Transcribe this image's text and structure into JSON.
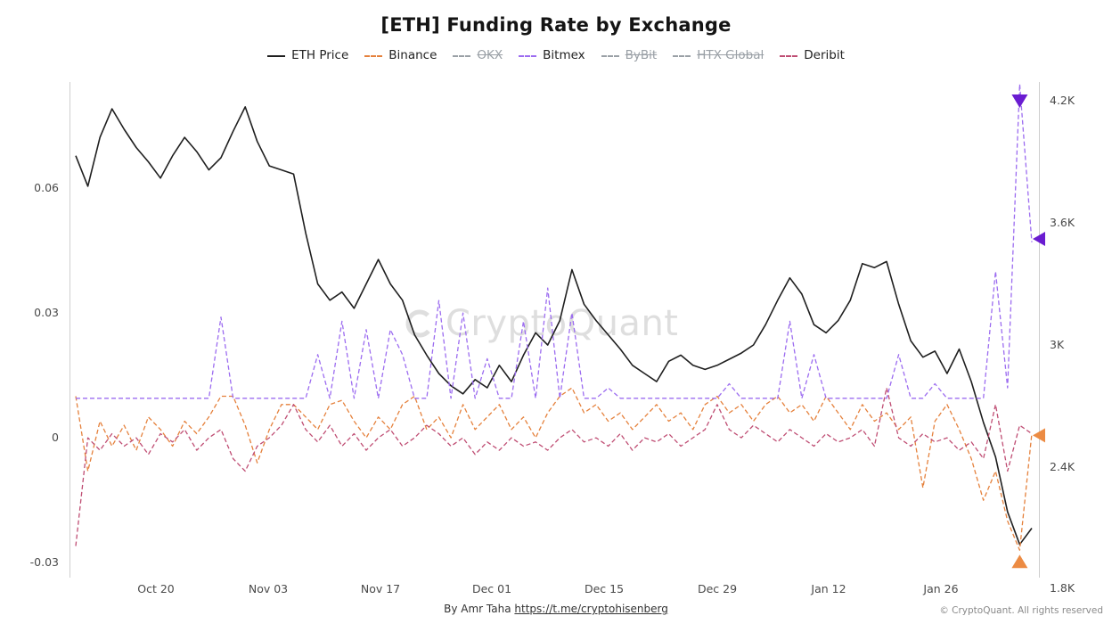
{
  "header": {
    "title": "[ETH] Funding Rate by Exchange"
  },
  "legend": {
    "items": [
      {
        "label": "ETH Price",
        "color": "#1f1f1f",
        "style": "solid",
        "active": true
      },
      {
        "label": "Binance",
        "color": "#e5813c",
        "style": "dashed",
        "active": true
      },
      {
        "label": "OKX",
        "color": "#9aa0a6",
        "style": "dashed",
        "active": false
      },
      {
        "label": "Bitmex",
        "color": "#9c6cf0",
        "style": "dashed",
        "active": true
      },
      {
        "label": "ByBit",
        "color": "#9aa0a6",
        "style": "dashed",
        "active": false
      },
      {
        "label": "HTX Global",
        "color": "#9aa0a6",
        "style": "dashed",
        "active": false
      },
      {
        "label": "Deribit",
        "color": "#bf4d73",
        "style": "dashed",
        "active": true
      }
    ]
  },
  "chart_data": {
    "type": "line",
    "title": "[ETH] Funding Rate by Exchange",
    "x_axis": {
      "count": 80,
      "ticks": [
        {
          "index": 6.6,
          "label": "Oct 20"
        },
        {
          "index": 15.9,
          "label": "Nov 03"
        },
        {
          "index": 25.2,
          "label": "Nov 17"
        },
        {
          "index": 34.4,
          "label": "Dec 01"
        },
        {
          "index": 43.7,
          "label": "Dec 15"
        },
        {
          "index": 53.0,
          "label": "Dec 29"
        },
        {
          "index": 62.2,
          "label": "Jan 12"
        },
        {
          "index": 71.5,
          "label": "Jan 26"
        }
      ]
    },
    "left_axis": {
      "min": -0.0336,
      "max": 0.0855,
      "ticks": [
        {
          "value": -0.03,
          "label": "-0.03"
        },
        {
          "value": 0,
          "label": "0"
        },
        {
          "value": 0.03,
          "label": "0.03"
        },
        {
          "value": 0.06,
          "label": "0.06"
        }
      ]
    },
    "right_axis": {
      "min": 1.857,
      "max": 4.292,
      "ticks": [
        {
          "value": 1.8,
          "label": "1.8K"
        },
        {
          "value": 2.4,
          "label": "2.4K"
        },
        {
          "value": 3.0,
          "label": "3K"
        },
        {
          "value": 3.6,
          "label": "3.6K"
        },
        {
          "value": 4.2,
          "label": "4.2K"
        }
      ]
    },
    "series": [
      {
        "name": "ETH Price",
        "axis": "right",
        "color": "#1f1f1f",
        "dash": null,
        "width": 1.6,
        "values": [
          3.93,
          3.78,
          4.02,
          4.16,
          4.06,
          3.97,
          3.9,
          3.82,
          3.93,
          4.02,
          3.95,
          3.86,
          3.92,
          4.05,
          4.17,
          4.0,
          3.88,
          3.86,
          3.84,
          3.55,
          3.3,
          3.22,
          3.26,
          3.18,
          3.3,
          3.42,
          3.3,
          3.22,
          3.05,
          2.95,
          2.86,
          2.8,
          2.76,
          2.83,
          2.79,
          2.9,
          2.82,
          2.95,
          3.06,
          3.0,
          3.12,
          3.37,
          3.2,
          3.12,
          3.05,
          2.98,
          2.9,
          2.86,
          2.82,
          2.92,
          2.95,
          2.9,
          2.88,
          2.9,
          2.93,
          2.96,
          3.0,
          3.1,
          3.22,
          3.33,
          3.25,
          3.1,
          3.06,
          3.12,
          3.22,
          3.4,
          3.38,
          3.41,
          3.2,
          3.02,
          2.94,
          2.97,
          2.86,
          2.98,
          2.82,
          2.62,
          2.45,
          2.18,
          2.02,
          2.1
        ]
      },
      {
        "name": "Binance",
        "axis": "left",
        "color": "#e5813c",
        "dash": "5 3",
        "width": 1.3,
        "values": [
          0.01,
          -0.008,
          0.004,
          -0.002,
          0.003,
          -0.003,
          0.005,
          0.002,
          -0.002,
          0.004,
          0.001,
          0.005,
          0.01,
          0.01,
          0.003,
          -0.006,
          0.002,
          0.008,
          0.008,
          0.005,
          0.002,
          0.008,
          0.009,
          0.004,
          0.0,
          0.005,
          0.002,
          0.008,
          0.01,
          0.002,
          0.005,
          0.0,
          0.008,
          0.002,
          0.005,
          0.008,
          0.002,
          0.005,
          0.0,
          0.006,
          0.01,
          0.012,
          0.006,
          0.008,
          0.004,
          0.006,
          0.002,
          0.005,
          0.008,
          0.004,
          0.006,
          0.002,
          0.008,
          0.01,
          0.006,
          0.008,
          0.004,
          0.008,
          0.01,
          0.006,
          0.008,
          0.004,
          0.01,
          0.006,
          0.002,
          0.008,
          0.004,
          0.006,
          0.002,
          0.005,
          -0.012,
          0.004,
          0.008,
          0.002,
          -0.005,
          -0.015,
          -0.008,
          -0.02,
          -0.027,
          0.001
        ]
      },
      {
        "name": "Bitmex",
        "axis": "left",
        "color": "#9c6cf0",
        "dash": "5 3",
        "width": 1.3,
        "values": [
          0.0095,
          0.0095,
          0.0095,
          0.0095,
          0.0095,
          0.0095,
          0.0095,
          0.0095,
          0.0095,
          0.0095,
          0.0095,
          0.0095,
          0.029,
          0.0095,
          0.0095,
          0.0095,
          0.0095,
          0.0095,
          0.0095,
          0.0095,
          0.02,
          0.0095,
          0.028,
          0.0095,
          0.026,
          0.0095,
          0.026,
          0.02,
          0.0095,
          0.0095,
          0.033,
          0.0095,
          0.03,
          0.0095,
          0.019,
          0.0095,
          0.0095,
          0.028,
          0.0095,
          0.036,
          0.0095,
          0.03,
          0.0095,
          0.0095,
          0.012,
          0.0095,
          0.0095,
          0.0095,
          0.0095,
          0.0095,
          0.0095,
          0.0095,
          0.0095,
          0.0095,
          0.013,
          0.0095,
          0.0095,
          0.0095,
          0.0095,
          0.028,
          0.0095,
          0.02,
          0.0095,
          0.0095,
          0.0095,
          0.0095,
          0.0095,
          0.0095,
          0.02,
          0.0095,
          0.0095,
          0.013,
          0.0095,
          0.0095,
          0.0095,
          0.0095,
          0.04,
          0.012,
          0.085,
          0.047
        ]
      },
      {
        "name": "Deribit",
        "axis": "left",
        "color": "#bf4d73",
        "dash": "5 3",
        "width": 1.3,
        "values": [
          -0.026,
          0.0,
          -0.003,
          0.001,
          -0.002,
          0.0,
          -0.004,
          0.001,
          -0.001,
          0.002,
          -0.003,
          0.0,
          0.002,
          -0.005,
          -0.008,
          -0.002,
          0.0,
          0.003,
          0.008,
          0.002,
          -0.001,
          0.003,
          -0.002,
          0.001,
          -0.003,
          0.0,
          0.002,
          -0.002,
          0.0,
          0.003,
          0.001,
          -0.002,
          0.0,
          -0.004,
          -0.001,
          -0.003,
          0.0,
          -0.002,
          -0.001,
          -0.003,
          0.0,
          0.002,
          -0.001,
          0.0,
          -0.002,
          0.001,
          -0.003,
          0.0,
          -0.001,
          0.001,
          -0.002,
          0.0,
          0.002,
          0.008,
          0.002,
          0.0,
          0.003,
          0.001,
          -0.001,
          0.002,
          0.0,
          -0.002,
          0.001,
          -0.001,
          0.0,
          0.002,
          -0.002,
          0.012,
          0.0,
          -0.002,
          0.001,
          -0.001,
          0.0,
          -0.003,
          -0.001,
          -0.005,
          0.008,
          -0.008,
          0.003,
          0.001
        ]
      }
    ],
    "markers": [
      {
        "name": "bitmex-peak-marker",
        "shape": "down",
        "color": "#6a1cd1",
        "axis": "left",
        "value": 0.081,
        "x_index": 78
      },
      {
        "name": "bitmex-current-marker",
        "shape": "left-edge",
        "color": "#6a1cd1",
        "axis": "left",
        "value": 0.0478
      },
      {
        "name": "binance-current-marker",
        "shape": "left-edge",
        "color": "#ec8b43",
        "axis": "left",
        "value": 0.0006
      },
      {
        "name": "binance-low-marker",
        "shape": "up",
        "color": "#ec8b43",
        "axis": "left",
        "value": -0.0298,
        "x_index": 78
      }
    ]
  },
  "watermark": {
    "text": "CryptoQuant"
  },
  "footer": {
    "by": "By Amr Taha",
    "link": "https://t.me/cryptohisenberg",
    "copyright": "© CryptoQuant. All rights reserved"
  }
}
